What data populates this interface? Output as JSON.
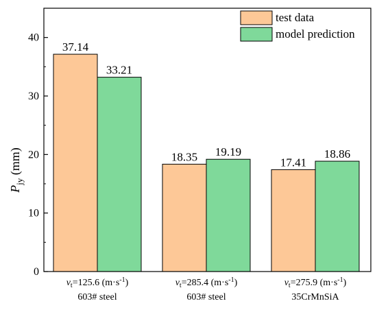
{
  "chart_data": {
    "type": "bar",
    "ylabel": {
      "main": "P",
      "sub": "jy",
      "rest": " (mm)"
    },
    "ylim": [
      0,
      45
    ],
    "yticks": [
      0,
      10,
      20,
      30,
      40
    ],
    "grid": false,
    "legend_position": "top-right",
    "categories": [
      {
        "v": "v",
        "sub": "t",
        "line1_rest": "=125.6 (m·s",
        "sup": "-1",
        "close": ")",
        "line2": "603# steel"
      },
      {
        "v": "v",
        "sub": "t",
        "line1_rest": "=285.4 (m·s",
        "sup": "-1",
        "close": ")",
        "line2": "603# steel"
      },
      {
        "v": "v",
        "sub": "t",
        "line1_rest": "=275.9 (m·s",
        "sup": "-1",
        "close": ")",
        "line2": "35CrMnSiA"
      }
    ],
    "series": [
      {
        "name": "test data",
        "color": "#FDC897",
        "values": [
          37.14,
          18.35,
          17.41
        ],
        "labels": [
          "37.14",
          "18.35",
          "17.41"
        ]
      },
      {
        "name": "model prediction",
        "color": "#7FD99A",
        "values": [
          33.21,
          19.19,
          18.86
        ],
        "labels": [
          "33.21",
          "19.19",
          "18.86"
        ]
      }
    ]
  }
}
